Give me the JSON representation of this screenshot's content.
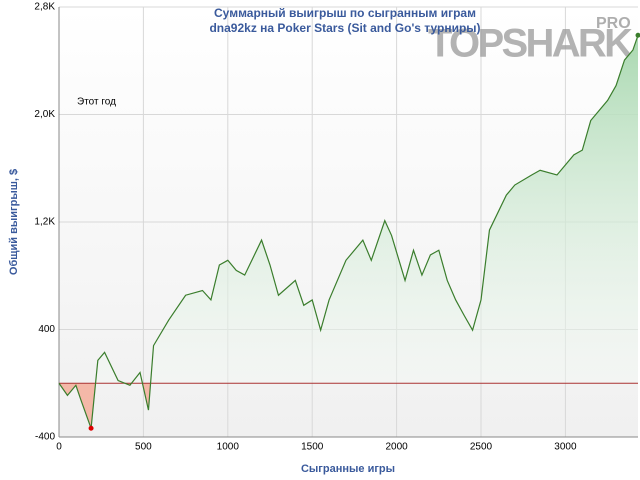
{
  "chart_data": {
    "type": "line",
    "title": "Суммарный выигрыш по сыгранным играм",
    "subtitle": "dna92kz на Poker Stars (Sit and Go's турниры)",
    "annotation": "Этот год",
    "watermark": "TOPSHARK",
    "watermark_badge": "PRO",
    "x_label": "Сыгранные игры",
    "y_label": "Общий выигрыш, $",
    "x": [
      0,
      50,
      100,
      130,
      190,
      230,
      270,
      350,
      420,
      480,
      530,
      560,
      650,
      750,
      850,
      900,
      950,
      1000,
      1050,
      1100,
      1200,
      1250,
      1300,
      1400,
      1450,
      1500,
      1550,
      1600,
      1700,
      1800,
      1850,
      1930,
      1970,
      2050,
      2100,
      2150,
      2200,
      2250,
      2300,
      2350,
      2400,
      2450,
      2500,
      2550,
      2650,
      2700,
      2800,
      2850,
      2950,
      3050,
      3100,
      3150,
      3250,
      3300,
      3350,
      3400,
      3430
    ],
    "series": [
      {
        "name": "Общий выигрыш",
        "color": "#3a7d2c",
        "values": [
          0,
          -90,
          -15,
          -125,
          -335,
          170,
          230,
          20,
          -15,
          80,
          -200,
          280,
          470,
          655,
          690,
          620,
          880,
          915,
          840,
          805,
          1065,
          880,
          655,
          765,
          580,
          620,
          395,
          620,
          915,
          1065,
          915,
          1210,
          1100,
          765,
          990,
          805,
          955,
          990,
          765,
          620,
          505,
          395,
          620,
          1140,
          1400,
          1475,
          1550,
          1585,
          1550,
          1700,
          1735,
          1955,
          2105,
          2215,
          2405,
          2480,
          2590
        ]
      }
    ],
    "xlim": [
      0,
      3430
    ],
    "xticks": [
      0,
      500,
      1000,
      1500,
      2000,
      2500,
      3000
    ],
    "ylim": [
      -400,
      2800
    ],
    "yticks": [
      -400,
      400,
      {
        "value": 1200,
        "label": "1,2K"
      },
      {
        "value": 2000,
        "label": "2,0K"
      },
      {
        "value": 2800,
        "label": "2,8K"
      }
    ],
    "grid": true
  }
}
